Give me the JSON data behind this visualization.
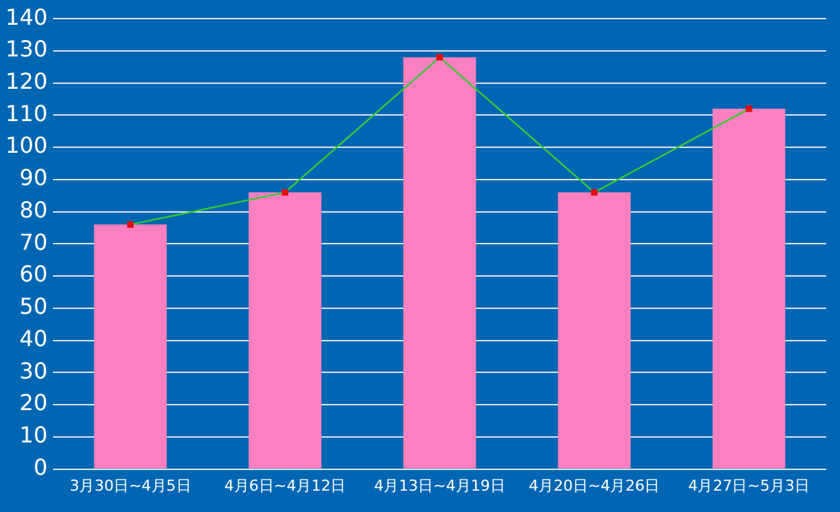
{
  "chart_data": {
    "type": "bar",
    "categories": [
      "3月30日~4月5日",
      "4月6日~4月12日",
      "4月13日~4月19日",
      "4月20日~4月26日",
      "4月27日~5月3日"
    ],
    "series": [
      {
        "color": "#ff80c0",
        "values": [
          76,
          86,
          128,
          86,
          112
        ]
      },
      {
        "type": "line",
        "color": "#33cc33",
        "values": [
          76,
          86,
          128,
          86,
          112
        ]
      }
    ],
    "ylim": [
      0,
      140
    ],
    "yticks": [
      0,
      10,
      20,
      30,
      40,
      50,
      60,
      70,
      80,
      90,
      100,
      110,
      120,
      130,
      140
    ],
    "grid": "y",
    "marker": "square",
    "legend": false
  }
}
